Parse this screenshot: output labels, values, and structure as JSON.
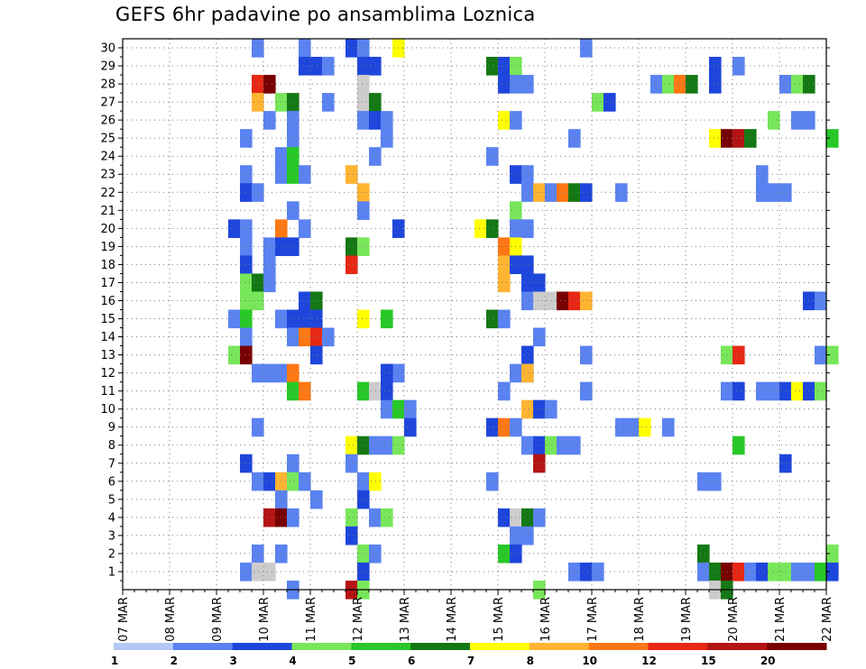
{
  "chart_data": {
    "type": "heatmap",
    "title": "GEFS 6hr padavine po ansamblima Loznica",
    "xlabel": "",
    "ylabel": "",
    "x_tick_labels": [
      "07 MAR",
      "08 MAR",
      "09 MAR",
      "10 MAR",
      "11 MAR",
      "12 MAR",
      "13 MAR",
      "14 MAR",
      "15 MAR",
      "16 MAR",
      "17 MAR",
      "18 MAR",
      "19 MAR",
      "20 MAR",
      "21 MAR",
      "22 MAR"
    ],
    "y_tick_labels": [
      "1",
      "2",
      "3",
      "4",
      "5",
      "6",
      "7",
      "8",
      "9",
      "10",
      "11",
      "12",
      "13",
      "14",
      "15",
      "16",
      "17",
      "18",
      "19",
      "20",
      "21",
      "22",
      "23",
      "24",
      "25",
      "26",
      "27",
      "28",
      "29",
      "30"
    ],
    "ylim": [
      0,
      30
    ],
    "x_steps_per_day": 4,
    "grid": true,
    "colorbar": {
      "labels": [
        "1",
        "2",
        "3",
        "4",
        "5",
        "6",
        "7",
        "8",
        "10",
        "12",
        "15",
        "20"
      ],
      "colors": [
        "#b4c8f5",
        "#5a82f0",
        "#1e46dc",
        "#78e65a",
        "#28c828",
        "#147814",
        "#ffff00",
        "#ffb432",
        "#ff7814",
        "#e62814",
        "#b41414",
        "#780000"
      ]
    },
    "cells": [
      [
        11,
        30,
        1
      ],
      [
        15,
        30,
        1
      ],
      [
        19,
        30,
        2
      ],
      [
        20,
        30,
        1
      ],
      [
        23,
        30,
        6
      ],
      [
        39,
        30,
        1
      ],
      [
        15,
        29,
        2
      ],
      [
        16,
        29,
        2
      ],
      [
        17,
        29,
        1
      ],
      [
        20,
        29,
        2
      ],
      [
        21,
        29,
        2
      ],
      [
        31,
        29,
        5
      ],
      [
        32,
        29,
        2
      ],
      [
        33,
        29,
        3
      ],
      [
        50,
        29,
        2
      ],
      [
        52,
        29,
        1
      ],
      [
        11,
        28,
        9
      ],
      [
        12,
        28,
        11
      ],
      [
        20,
        28,
        12
      ],
      [
        32,
        28,
        2
      ],
      [
        33,
        28,
        1
      ],
      [
        34,
        28,
        1
      ],
      [
        45,
        28,
        1
      ],
      [
        46,
        28,
        3
      ],
      [
        47,
        28,
        8
      ],
      [
        48,
        28,
        5
      ],
      [
        50,
        28,
        2
      ],
      [
        56,
        28,
        1
      ],
      [
        57,
        28,
        3
      ],
      [
        58,
        28,
        5
      ],
      [
        11,
        27,
        7
      ],
      [
        13,
        27,
        3
      ],
      [
        14,
        27,
        5
      ],
      [
        17,
        27,
        1
      ],
      [
        20,
        27,
        12
      ],
      [
        21,
        27,
        5
      ],
      [
        40,
        27,
        3
      ],
      [
        41,
        27,
        2
      ],
      [
        12,
        26,
        1
      ],
      [
        14,
        26,
        1
      ],
      [
        20,
        26,
        1
      ],
      [
        21,
        26,
        2
      ],
      [
        22,
        26,
        1
      ],
      [
        32,
        26,
        6
      ],
      [
        33,
        26,
        1
      ],
      [
        55,
        26,
        3
      ],
      [
        57,
        26,
        1
      ],
      [
        58,
        26,
        1
      ],
      [
        10,
        25,
        1
      ],
      [
        14,
        25,
        1
      ],
      [
        22,
        25,
        1
      ],
      [
        38,
        25,
        1
      ],
      [
        50,
        25,
        6
      ],
      [
        51,
        25,
        11
      ],
      [
        52,
        25,
        10
      ],
      [
        53,
        25,
        5
      ],
      [
        60,
        25,
        4
      ],
      [
        13,
        24,
        1
      ],
      [
        14,
        24,
        4
      ],
      [
        21,
        24,
        1
      ],
      [
        31,
        24,
        1
      ],
      [
        10,
        23,
        1
      ],
      [
        13,
        23,
        1
      ],
      [
        14,
        23,
        4
      ],
      [
        15,
        23,
        1
      ],
      [
        19,
        23,
        7
      ],
      [
        33,
        23,
        2
      ],
      [
        34,
        23,
        1
      ],
      [
        54,
        23,
        1
      ],
      [
        10,
        22,
        2
      ],
      [
        11,
        22,
        1
      ],
      [
        20,
        22,
        7
      ],
      [
        34,
        22,
        1
      ],
      [
        35,
        22,
        7
      ],
      [
        36,
        22,
        1
      ],
      [
        37,
        22,
        8
      ],
      [
        38,
        22,
        5
      ],
      [
        39,
        22,
        2
      ],
      [
        42,
        22,
        1
      ],
      [
        54,
        22,
        1
      ],
      [
        55,
        22,
        1
      ],
      [
        56,
        22,
        1
      ],
      [
        14,
        21,
        1
      ],
      [
        20,
        21,
        1
      ],
      [
        33,
        21,
        3
      ],
      [
        9,
        20,
        2
      ],
      [
        10,
        20,
        1
      ],
      [
        13,
        20,
        8
      ],
      [
        15,
        20,
        1
      ],
      [
        23,
        20,
        2
      ],
      [
        30,
        20,
        6
      ],
      [
        31,
        20,
        5
      ],
      [
        33,
        20,
        1
      ],
      [
        34,
        20,
        1
      ],
      [
        10,
        19,
        1
      ],
      [
        12,
        19,
        1
      ],
      [
        13,
        19,
        2
      ],
      [
        14,
        19,
        2
      ],
      [
        19,
        19,
        5
      ],
      [
        20,
        19,
        3
      ],
      [
        32,
        19,
        8
      ],
      [
        33,
        19,
        6
      ],
      [
        10,
        18,
        2
      ],
      [
        12,
        18,
        1
      ],
      [
        19,
        18,
        9
      ],
      [
        32,
        18,
        7
      ],
      [
        33,
        18,
        2
      ],
      [
        34,
        18,
        2
      ],
      [
        10,
        17,
        3
      ],
      [
        11,
        17,
        5
      ],
      [
        12,
        17,
        1
      ],
      [
        32,
        17,
        7
      ],
      [
        34,
        17,
        2
      ],
      [
        35,
        17,
        2
      ],
      [
        10,
        16,
        3
      ],
      [
        11,
        16,
        3
      ],
      [
        15,
        16,
        2
      ],
      [
        16,
        16,
        5
      ],
      [
        34,
        16,
        1
      ],
      [
        35,
        16,
        13
      ],
      [
        36,
        16,
        13
      ],
      [
        37,
        16,
        11
      ],
      [
        38,
        16,
        9
      ],
      [
        39,
        16,
        7
      ],
      [
        58,
        16,
        2
      ],
      [
        59,
        16,
        1
      ],
      [
        9,
        15,
        1
      ],
      [
        10,
        15,
        4
      ],
      [
        13,
        15,
        1
      ],
      [
        14,
        15,
        2
      ],
      [
        15,
        15,
        2
      ],
      [
        16,
        15,
        2
      ],
      [
        20,
        15,
        6
      ],
      [
        22,
        15,
        4
      ],
      [
        31,
        15,
        5
      ],
      [
        32,
        15,
        1
      ],
      [
        10,
        14,
        1
      ],
      [
        14,
        14,
        1
      ],
      [
        15,
        14,
        8
      ],
      [
        16,
        14,
        9
      ],
      [
        17,
        14,
        1
      ],
      [
        35,
        14,
        1
      ],
      [
        9,
        13,
        3
      ],
      [
        10,
        13,
        11
      ],
      [
        16,
        13,
        2
      ],
      [
        34,
        13,
        2
      ],
      [
        39,
        13,
        1
      ],
      [
        51,
        13,
        3
      ],
      [
        52,
        13,
        9
      ],
      [
        59,
        13,
        1
      ],
      [
        60,
        13,
        3
      ],
      [
        34,
        12,
        1
      ],
      [
        23,
        12,
        1
      ],
      [
        22,
        12,
        2
      ],
      [
        11,
        12,
        1
      ],
      [
        12,
        12,
        1
      ],
      [
        13,
        12,
        1
      ],
      [
        14,
        12,
        8
      ],
      [
        33,
        12,
        1
      ],
      [
        34,
        12,
        7
      ],
      [
        14,
        11,
        4
      ],
      [
        15,
        11,
        8
      ],
      [
        20,
        11,
        4
      ],
      [
        21,
        11,
        12
      ],
      [
        22,
        11,
        2
      ],
      [
        32,
        11,
        1
      ],
      [
        39,
        11,
        1
      ],
      [
        51,
        11,
        1
      ],
      [
        52,
        11,
        2
      ],
      [
        54,
        11,
        1
      ],
      [
        55,
        11,
        1
      ],
      [
        56,
        11,
        2
      ],
      [
        57,
        11,
        6
      ],
      [
        58,
        11,
        2
      ],
      [
        59,
        11,
        3
      ],
      [
        22,
        10,
        1
      ],
      [
        23,
        10,
        4
      ],
      [
        24,
        10,
        1
      ],
      [
        34,
        10,
        7
      ],
      [
        35,
        10,
        2
      ],
      [
        36,
        10,
        1
      ],
      [
        11,
        9,
        1
      ],
      [
        24,
        9,
        2
      ],
      [
        31,
        9,
        2
      ],
      [
        32,
        9,
        8
      ],
      [
        33,
        9,
        1
      ],
      [
        42,
        9,
        1
      ],
      [
        43,
        9,
        1
      ],
      [
        44,
        9,
        6
      ],
      [
        46,
        9,
        1
      ],
      [
        19,
        8,
        6
      ],
      [
        20,
        8,
        5
      ],
      [
        21,
        8,
        1
      ],
      [
        22,
        8,
        1
      ],
      [
        23,
        8,
        3
      ],
      [
        34,
        8,
        1
      ],
      [
        35,
        8,
        2
      ],
      [
        36,
        8,
        3
      ],
      [
        37,
        8,
        1
      ],
      [
        38,
        8,
        1
      ],
      [
        52,
        8,
        4
      ],
      [
        10,
        7,
        2
      ],
      [
        14,
        7,
        1
      ],
      [
        19,
        7,
        1
      ],
      [
        35,
        7,
        10
      ],
      [
        56,
        7,
        2
      ],
      [
        11,
        6,
        1
      ],
      [
        12,
        6,
        2
      ],
      [
        13,
        6,
        7
      ],
      [
        14,
        6,
        3
      ],
      [
        15,
        6,
        1
      ],
      [
        20,
        6,
        1
      ],
      [
        21,
        6,
        6
      ],
      [
        31,
        6,
        1
      ],
      [
        49,
        6,
        1
      ],
      [
        50,
        6,
        1
      ],
      [
        13,
        5,
        1
      ],
      [
        16,
        5,
        1
      ],
      [
        20,
        5,
        2
      ],
      [
        12,
        4,
        10
      ],
      [
        13,
        4,
        11
      ],
      [
        14,
        4,
        1
      ],
      [
        19,
        4,
        3
      ],
      [
        21,
        4,
        1
      ],
      [
        22,
        4,
        3
      ],
      [
        32,
        4,
        2
      ],
      [
        33,
        4,
        12
      ],
      [
        34,
        4,
        5
      ],
      [
        35,
        4,
        1
      ],
      [
        19,
        3,
        2
      ],
      [
        33,
        3,
        1
      ],
      [
        34,
        3,
        1
      ],
      [
        11,
        2,
        1
      ],
      [
        13,
        2,
        1
      ],
      [
        20,
        2,
        3
      ],
      [
        21,
        2,
        1
      ],
      [
        32,
        2,
        4
      ],
      [
        33,
        2,
        2
      ],
      [
        49,
        2,
        5
      ],
      [
        60,
        2,
        3
      ],
      [
        10,
        1,
        1
      ],
      [
        11,
        1,
        12
      ],
      [
        12,
        1,
        12
      ],
      [
        20,
        1,
        2
      ],
      [
        38,
        1,
        1
      ],
      [
        39,
        1,
        2
      ],
      [
        40,
        1,
        1
      ],
      [
        49,
        1,
        1
      ],
      [
        50,
        1,
        5
      ],
      [
        51,
        1,
        11
      ],
      [
        52,
        1,
        9
      ],
      [
        53,
        1,
        1
      ],
      [
        54,
        1,
        2
      ],
      [
        55,
        1,
        3
      ],
      [
        56,
        1,
        3
      ],
      [
        57,
        1,
        1
      ],
      [
        58,
        1,
        1
      ],
      [
        59,
        1,
        4
      ],
      [
        60,
        1,
        2
      ],
      [
        14,
        0,
        1
      ],
      [
        19,
        0,
        10
      ],
      [
        20,
        0,
        3
      ],
      [
        35,
        0,
        3
      ],
      [
        50,
        0,
        12
      ],
      [
        51,
        0,
        5
      ]
    ]
  }
}
